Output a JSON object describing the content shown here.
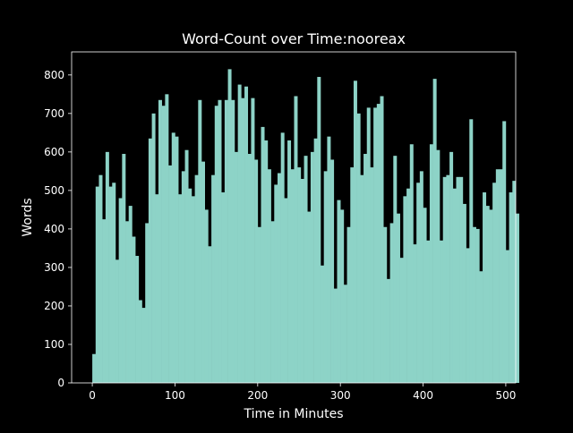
{
  "chart_data": {
    "type": "bar",
    "title": "Word-Count over Time:nooreax",
    "xlabel": "Time in Minutes",
    "ylabel": "Words",
    "xlim": [
      -25,
      512
    ],
    "ylim": [
      0,
      860
    ],
    "xticks": [
      0,
      100,
      200,
      300,
      400,
      500
    ],
    "yticks": [
      0,
      100,
      200,
      300,
      400,
      500,
      600,
      700,
      800
    ],
    "bin_width_minutes": 4,
    "x_start": 0,
    "bar_color": "#8dd3c7",
    "background": "#000000",
    "foreground": "#ffffff",
    "grid": false,
    "values": [
      75,
      510,
      540,
      425,
      600,
      510,
      520,
      320,
      480,
      595,
      420,
      460,
      380,
      330,
      215,
      195,
      415,
      635,
      700,
      490,
      735,
      720,
      750,
      565,
      650,
      640,
      490,
      550,
      605,
      505,
      485,
      540,
      735,
      575,
      450,
      355,
      540,
      720,
      735,
      495,
      735,
      815,
      735,
      600,
      775,
      740,
      770,
      595,
      740,
      580,
      405,
      665,
      630,
      555,
      420,
      515,
      545,
      650,
      480,
      630,
      555,
      745,
      560,
      530,
      590,
      445,
      600,
      635,
      795,
      305,
      550,
      640,
      580,
      245,
      475,
      450,
      255,
      405,
      560,
      785,
      700,
      540,
      595,
      715,
      560,
      715,
      725,
      745,
      405,
      270,
      415,
      590,
      440,
      325,
      485,
      505,
      620,
      360,
      520,
      550,
      455,
      370,
      620,
      790,
      605,
      370,
      535,
      540,
      600,
      505,
      535,
      535,
      465,
      350,
      685,
      405,
      400,
      290,
      495,
      460,
      450,
      520,
      555,
      555,
      680,
      345,
      495,
      525,
      440
    ]
  }
}
